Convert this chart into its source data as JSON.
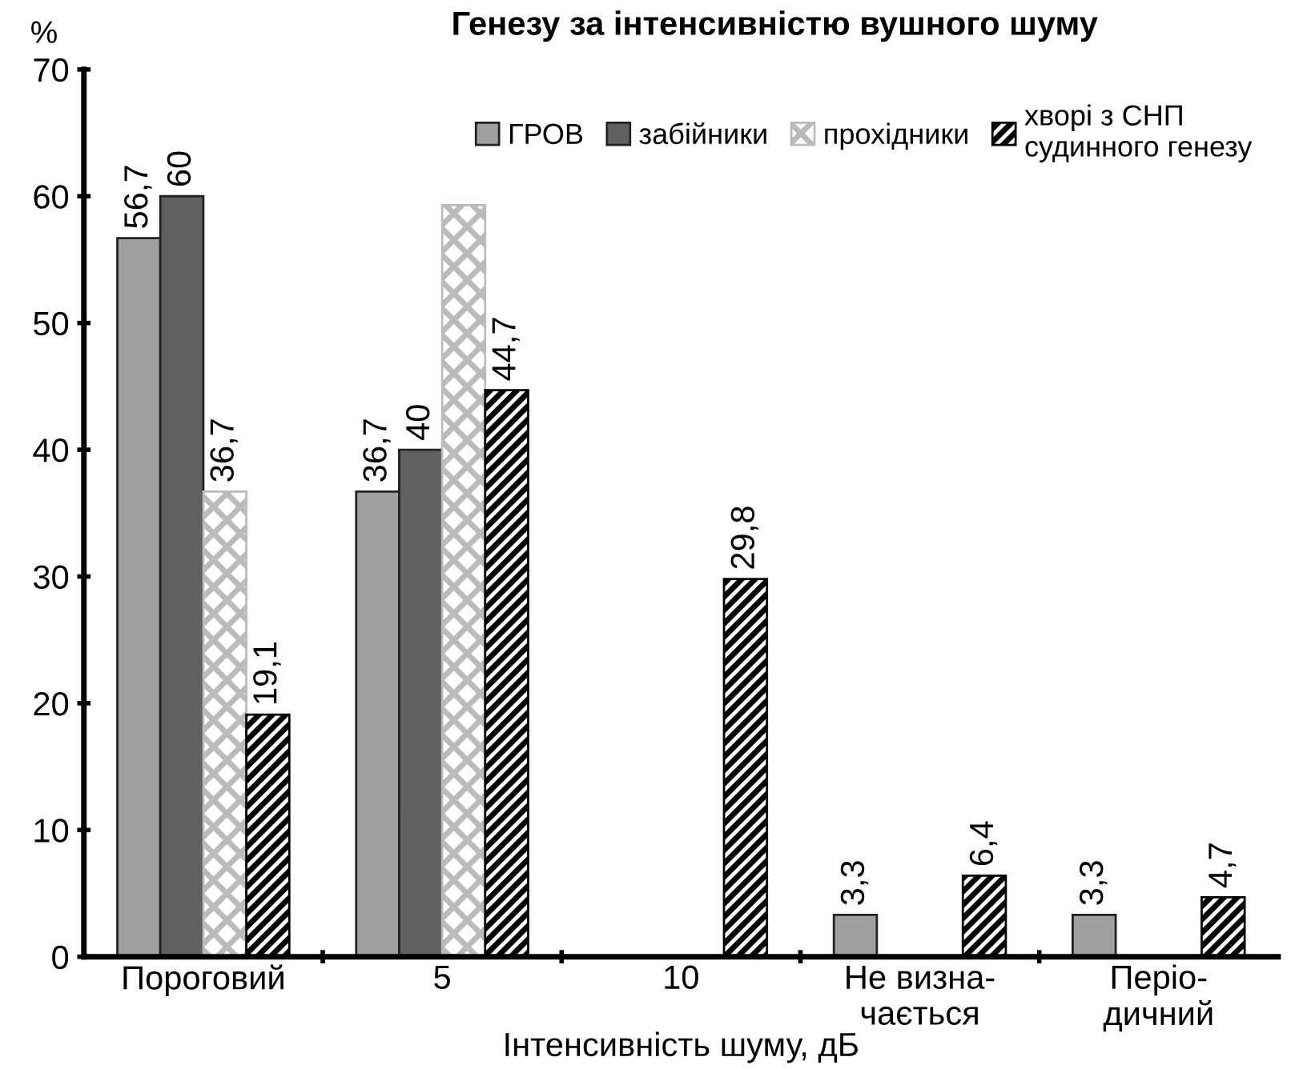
{
  "chart_data": {
    "type": "bar",
    "title": "Генезу за інтенсивністю вушного шуму",
    "xlabel": "Інтенсивність шуму, дБ",
    "ylabel": "%",
    "categories": [
      "Пороговий",
      "5",
      "10",
      "Не визна-\nчається",
      "Періо-\nдичний"
    ],
    "series": [
      {
        "name": "ГРОВ",
        "color": "#a0a0a0",
        "values": [
          56.7,
          36.7,
          null,
          3.3,
          3.3
        ],
        "value_labels": [
          "56,7",
          "36,7",
          null,
          "3,3",
          "3,3"
        ]
      },
      {
        "name": "забійники",
        "color": "#606060",
        "values": [
          60,
          40,
          null,
          null,
          null
        ],
        "value_labels": [
          "60",
          "40",
          null,
          null,
          null
        ]
      },
      {
        "name": "прохідники",
        "color": "#bbbbbb",
        "values": [
          36.7,
          59.3,
          null,
          null,
          null
        ],
        "value_labels": [
          "36,7",
          null,
          null,
          null,
          null
        ]
      },
      {
        "name": "хворі з СНП\nсудинного генезу",
        "color": "#000000",
        "values": [
          19.1,
          44.7,
          29.8,
          6.4,
          4.7
        ],
        "value_labels": [
          "19,1",
          "44,7",
          "29,8",
          "6,4",
          "4,7"
        ]
      }
    ],
    "ylim": [
      0,
      70
    ],
    "yticks": [
      0,
      10,
      20,
      30,
      40,
      50,
      60,
      70
    ],
    "grid": false,
    "legend": "top"
  }
}
